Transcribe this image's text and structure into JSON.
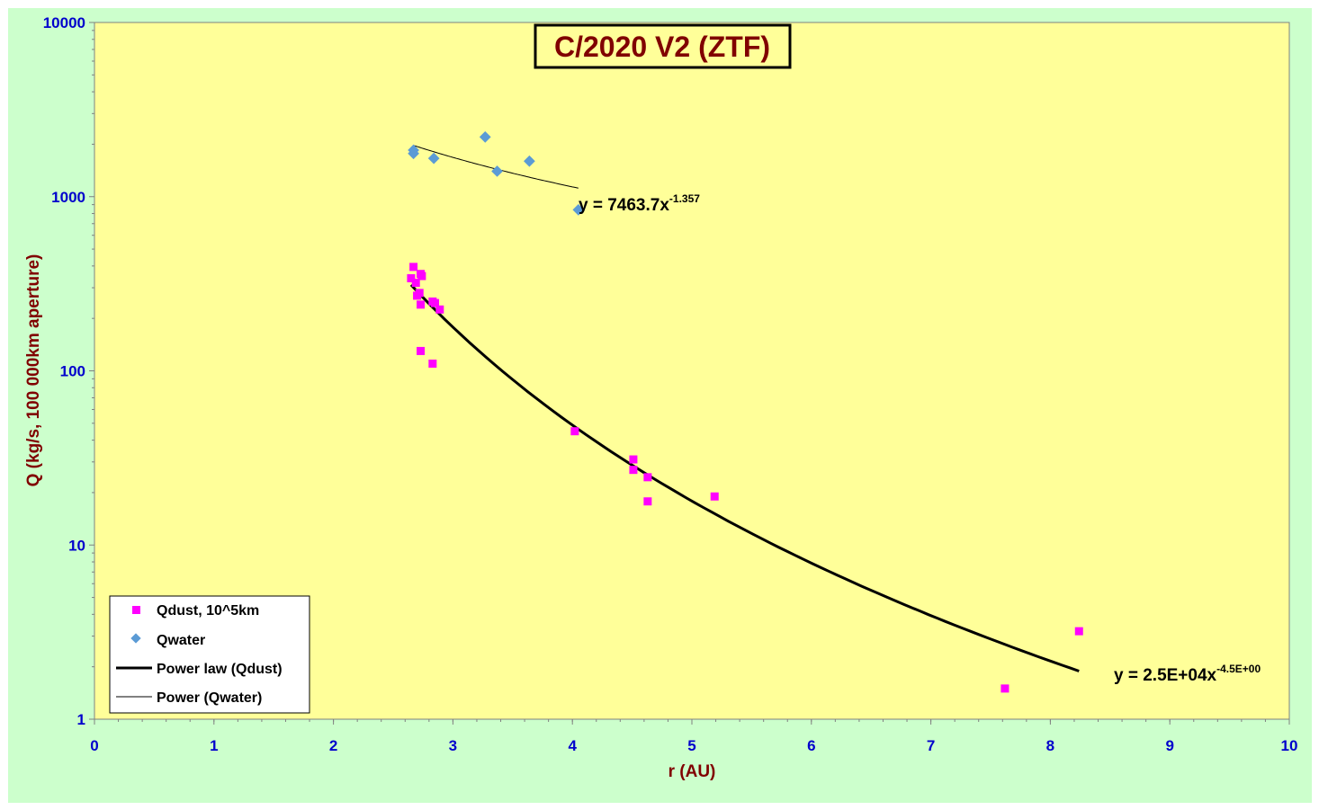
{
  "chart_data": {
    "type": "scatter",
    "title": "C/2020 V2 (ZTF)",
    "xlabel": "r (AU)",
    "ylabel": "Q (kg/s, 100 000km aperture)",
    "xlim": [
      0,
      10
    ],
    "ylim": [
      1,
      10000
    ],
    "y_scale": "log",
    "x_ticks": [
      "0",
      "1",
      "2",
      "3",
      "4",
      "5",
      "6",
      "7",
      "8",
      "9",
      "10"
    ],
    "y_ticks": [
      "1",
      "10",
      "100",
      "1000",
      "10000"
    ],
    "grid": false,
    "legend_position": "bottom-left",
    "series": [
      {
        "name": "Qdust, 10^5km",
        "marker": "square",
        "color": "#ff00ff",
        "points": [
          [
            2.65,
            340
          ],
          [
            2.67,
            395
          ],
          [
            2.69,
            320
          ],
          [
            2.7,
            270
          ],
          [
            2.72,
            280
          ],
          [
            2.73,
            360
          ],
          [
            2.74,
            350
          ],
          [
            2.73,
            240
          ],
          [
            2.83,
            250
          ],
          [
            2.85,
            245
          ],
          [
            2.89,
            225
          ],
          [
            2.73,
            130
          ],
          [
            2.83,
            110
          ],
          [
            4.02,
            45
          ],
          [
            4.51,
            31
          ],
          [
            4.51,
            27
          ],
          [
            4.63,
            24.5
          ],
          [
            4.63,
            17.8
          ],
          [
            5.19,
            19
          ],
          [
            7.62,
            1.5
          ],
          [
            8.24,
            3.2
          ]
        ]
      },
      {
        "name": "Qwater",
        "marker": "diamond",
        "color": "#5b9bd5",
        "points": [
          [
            2.67,
            1850
          ],
          [
            2.67,
            1770
          ],
          [
            2.84,
            1660
          ],
          [
            3.27,
            2200
          ],
          [
            3.37,
            1400
          ],
          [
            3.64,
            1600
          ],
          [
            4.05,
            840
          ]
        ]
      }
    ],
    "trendlines": [
      {
        "name": "Power law (Qdust)",
        "coefficient": 25000,
        "exponent": -4.5,
        "x_range": [
          2.65,
          8.24
        ],
        "color": "#000000",
        "label_main": "y = 2.5E+04x",
        "label_sup": "-4.5E+00"
      },
      {
        "name": "Power (Qwater)",
        "coefficient": 7463.7,
        "exponent": -1.357,
        "x_range": [
          2.67,
          4.05
        ],
        "color": "#000000",
        "label_main": "y = 7463.7x",
        "label_sup": "-1.357"
      }
    ],
    "colors": {
      "outer_background": "#ccffcc",
      "plot_background": "#ffff99",
      "axis_text": "#0000cc",
      "axis_title": "#800000"
    }
  }
}
